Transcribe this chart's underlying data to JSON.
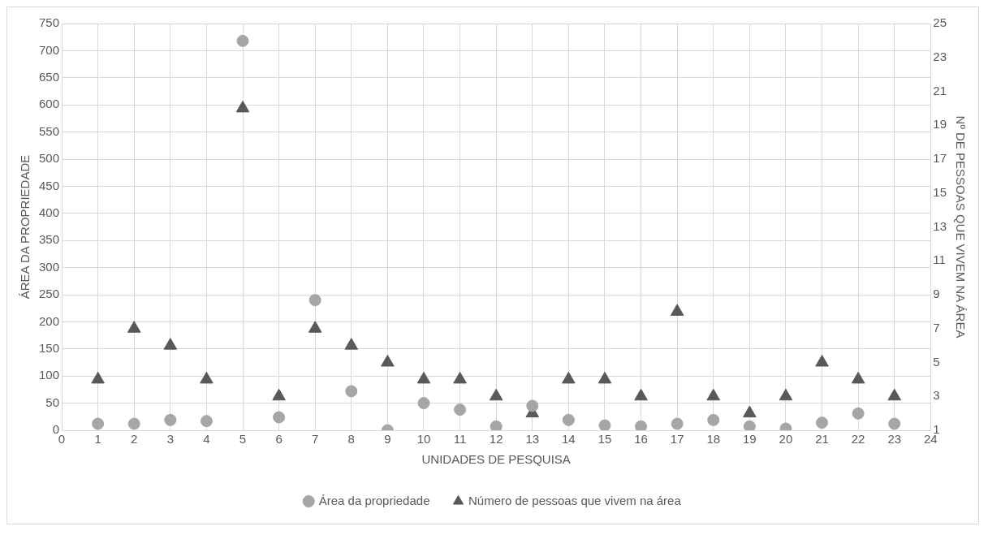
{
  "chart_data": {
    "type": "scatter",
    "xlabel": "UNIDADES DE PESQUISA",
    "ylabel": "ÁREA DA PROPRIEDADE",
    "y2label": "Nº DE PESSOAS QUE VIVEM NA ÁREA",
    "x": [
      1,
      2,
      3,
      4,
      5,
      6,
      7,
      8,
      9,
      10,
      11,
      12,
      13,
      14,
      15,
      16,
      17,
      18,
      19,
      20,
      21,
      22,
      23
    ],
    "series": [
      {
        "name": "Área da propriedade",
        "color": "#a6a6a6",
        "marker": "circle",
        "values": [
          12,
          12,
          19,
          17,
          718,
          24,
          240,
          72,
          0,
          50,
          38,
          7,
          45,
          19,
          9,
          7,
          12,
          19,
          7,
          3,
          14,
          31,
          12
        ]
      },
      {
        "name": "Número de pessoas que vivem na área",
        "color": "#595959",
        "marker": "triangle",
        "axis": "y2",
        "values": [
          4,
          7,
          6,
          4,
          20,
          3,
          7,
          6,
          5,
          4,
          4,
          3,
          2,
          4,
          4,
          3,
          8,
          3,
          2,
          3,
          5,
          4,
          3
        ]
      }
    ],
    "xlim": [
      0,
      24
    ],
    "xticks": [
      0,
      1,
      2,
      3,
      4,
      5,
      6,
      7,
      8,
      9,
      10,
      11,
      12,
      13,
      14,
      15,
      16,
      17,
      18,
      19,
      20,
      21,
      22,
      23,
      24
    ],
    "ylim": [
      0,
      750
    ],
    "yticks": [
      0,
      50,
      100,
      150,
      200,
      250,
      300,
      350,
      400,
      450,
      500,
      550,
      600,
      650,
      700,
      750
    ],
    "y2lim": [
      1,
      25
    ],
    "y2ticks": [
      1,
      3,
      5,
      7,
      9,
      11,
      13,
      15,
      17,
      19,
      21,
      23,
      25
    ],
    "grid": true,
    "legend": "bottom"
  }
}
